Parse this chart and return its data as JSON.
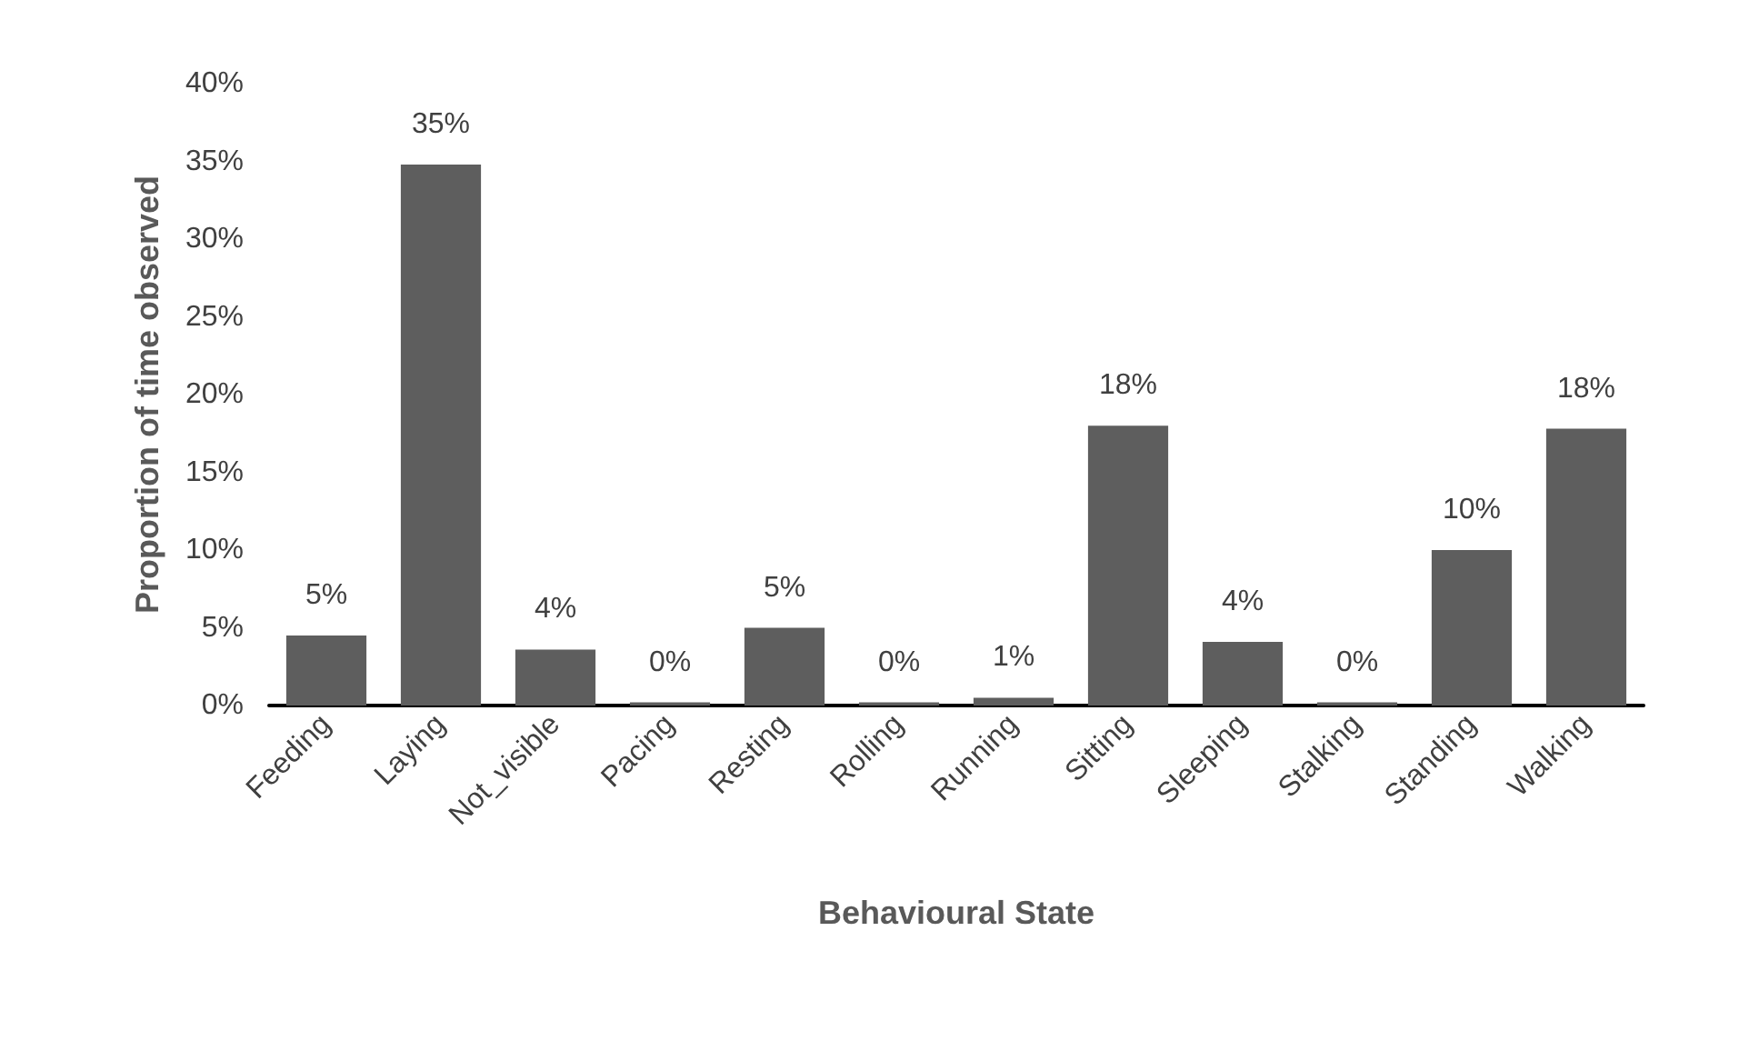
{
  "chart_data": {
    "type": "bar",
    "xlabel": "Behavioural State",
    "ylabel": "Proportion of time observed",
    "categories": [
      "Feeding",
      "Laying",
      "Not_visible",
      "Pacing",
      "Resting",
      "Rolling",
      "Running",
      "Sitting",
      "Sleeping",
      "Stalking",
      "Standing",
      "Walking"
    ],
    "values": [
      4.5,
      34.8,
      3.6,
      0.2,
      5.0,
      0.2,
      0.5,
      18.0,
      4.1,
      0.2,
      10.0,
      17.8
    ],
    "value_labels": [
      "5%",
      "35%",
      "4%",
      "0%",
      "5%",
      "0%",
      "1%",
      "18%",
      "4%",
      "0%",
      "10%",
      "18%"
    ],
    "color": "#5e5e5e",
    "ylim": [
      0,
      40
    ],
    "yticks": [
      {
        "value": 0,
        "label": "0%"
      },
      {
        "value": 5,
        "label": "5%"
      },
      {
        "value": 10,
        "label": "10%"
      },
      {
        "value": 15,
        "label": "15%"
      },
      {
        "value": 20,
        "label": "20%"
      },
      {
        "value": 25,
        "label": "25%"
      },
      {
        "value": 30,
        "label": "30%"
      },
      {
        "value": 35,
        "label": "35%"
      },
      {
        "value": 40,
        "label": "40%"
      }
    ],
    "grid": false
  }
}
